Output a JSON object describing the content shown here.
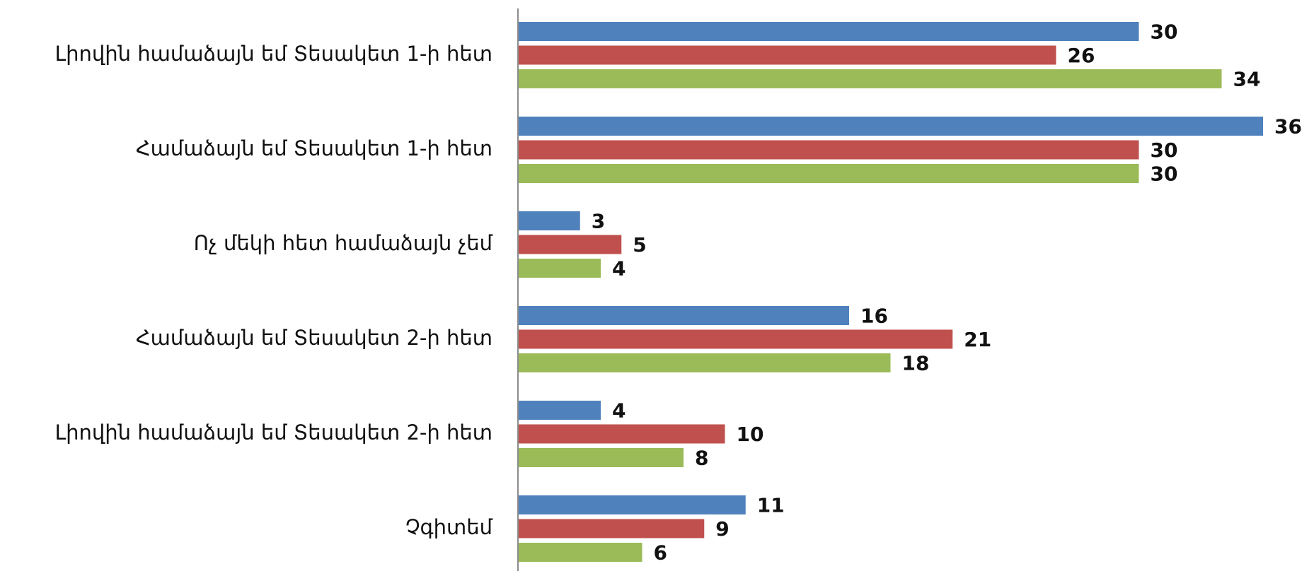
{
  "chart_data": {
    "type": "bar",
    "orientation": "horizontal",
    "categories": [
      "Լիովին համաձայն եմ Տեսակետ 1-ի հետ",
      "Համաձայն եմ Տեսակետ 1-ի հետ",
      "Ոչ մեկի հետ համաձայն չեմ",
      "Համաձայն եմ Տեսակետ 2-ի հետ",
      "Լիովին համաձայն եմ Տեսակետ 2-ի հետ",
      "Չգիտեմ"
    ],
    "series": [
      {
        "color": "#4F81BD",
        "values": [
          30,
          36,
          3,
          16,
          4,
          11
        ]
      },
      {
        "color": "#C0504D",
        "values": [
          26,
          30,
          5,
          21,
          10,
          9
        ]
      },
      {
        "color": "#9BBB59",
        "values": [
          34,
          30,
          4,
          18,
          8,
          6
        ]
      }
    ],
    "xlim": [
      0,
      36
    ],
    "grid": false,
    "legend": "none"
  }
}
